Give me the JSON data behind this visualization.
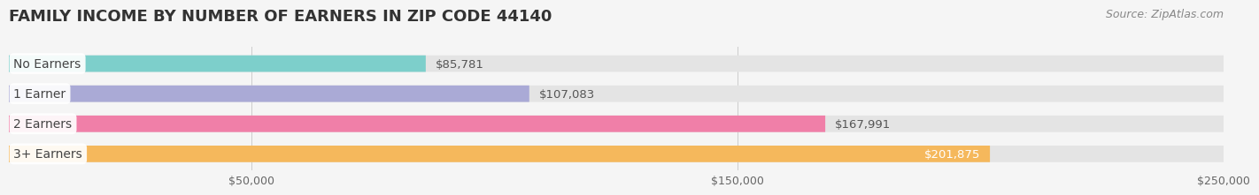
{
  "title": "FAMILY INCOME BY NUMBER OF EARNERS IN ZIP CODE 44140",
  "source": "Source: ZipAtlas.com",
  "categories": [
    "No Earners",
    "1 Earner",
    "2 Earners",
    "3+ Earners"
  ],
  "values": [
    85781,
    107083,
    167991,
    201875
  ],
  "bar_colors": [
    "#7dcfcb",
    "#aaaad6",
    "#f07fa8",
    "#f5b85c"
  ],
  "bar_label_colors": [
    "#555555",
    "#555555",
    "#555555",
    "#ffffff"
  ],
  "xlim": [
    0,
    250000
  ],
  "xticks": [
    50000,
    150000,
    250000
  ],
  "xtick_labels": [
    "$50,000",
    "$150,000",
    "$250,000"
  ],
  "background_color": "#f5f5f5",
  "bar_bg_color": "#e4e4e4",
  "title_fontsize": 13,
  "source_fontsize": 9,
  "label_fontsize": 10,
  "value_fontsize": 9.5,
  "tick_fontsize": 9
}
